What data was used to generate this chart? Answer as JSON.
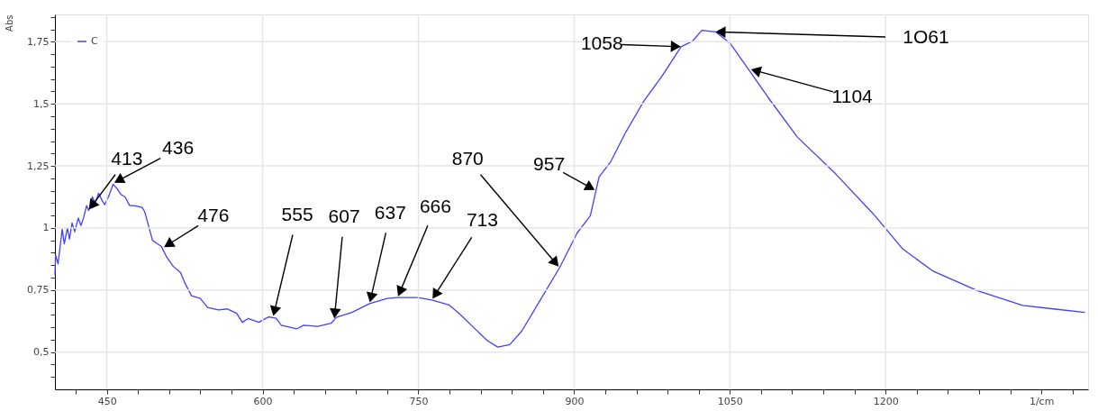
{
  "chart_data": {
    "type": "line",
    "ylabel": "Abs",
    "xlabel": "1/cm",
    "legend": "top left",
    "grid": true,
    "marker": "none",
    "line_style": "solid",
    "xlim": [
      400,
      1395
    ],
    "ylim": [
      0.35,
      1.86
    ],
    "xticks": [
      {
        "value": 420,
        "label": null
      },
      450,
      {
        "value": 480,
        "label": null
      },
      {
        "value": 510,
        "label": null
      },
      {
        "value": 540,
        "label": null
      },
      {
        "value": 570,
        "label": null
      },
      600,
      {
        "value": 630,
        "label": null
      },
      {
        "value": 660,
        "label": null
      },
      {
        "value": 690,
        "label": null
      },
      {
        "value": 720,
        "label": null
      },
      750,
      {
        "value": 780,
        "label": null
      },
      {
        "value": 810,
        "label": null
      },
      {
        "value": 840,
        "label": null
      },
      {
        "value": 870,
        "label": null
      },
      900,
      {
        "value": 930,
        "label": null
      },
      {
        "value": 960,
        "label": null
      },
      {
        "value": 990,
        "label": null
      },
      {
        "value": 1020,
        "label": null
      },
      1050,
      {
        "value": 1080,
        "label": null
      },
      {
        "value": 1110,
        "label": null
      },
      {
        "value": 1140,
        "label": null
      },
      {
        "value": 1170,
        "label": null
      },
      1200,
      {
        "value": 1230,
        "label": null
      },
      {
        "value": 1260,
        "label": null
      },
      {
        "value": 1290,
        "label": null
      },
      {
        "value": 1320,
        "label": null
      },
      {
        "value": 1350,
        "label": null
      },
      {
        "value": 1380,
        "label": null
      }
    ],
    "yticks": [
      {
        "value": 0.4,
        "label": null
      },
      {
        "value": 0.45,
        "label": null
      },
      {
        "value": 0.5,
        "label": "0,5"
      },
      {
        "value": 0.55,
        "label": null
      },
      {
        "value": 0.6,
        "label": null
      },
      {
        "value": 0.65,
        "label": null
      },
      {
        "value": 0.7,
        "label": null
      },
      {
        "value": 0.75,
        "label": "0,75"
      },
      {
        "value": 0.8,
        "label": null
      },
      {
        "value": 0.85,
        "label": null
      },
      {
        "value": 0.9,
        "label": null
      },
      {
        "value": 0.95,
        "label": null
      },
      1,
      {
        "value": 1.05,
        "label": null
      },
      {
        "value": 1.1,
        "label": null
      },
      {
        "value": 1.15,
        "label": null
      },
      {
        "value": 1.2,
        "label": null
      },
      {
        "value": 1.25,
        "label": "1,25"
      },
      {
        "value": 1.3,
        "label": null
      },
      {
        "value": 1.35,
        "label": null
      },
      {
        "value": 1.4,
        "label": null
      },
      {
        "value": 1.45,
        "label": null
      },
      {
        "value": 1.5,
        "label": "1,5"
      },
      {
        "value": 1.55,
        "label": null
      },
      {
        "value": 1.6,
        "label": null
      },
      {
        "value": 1.65,
        "label": null
      },
      {
        "value": 1.7,
        "label": null
      },
      {
        "value": 1.75,
        "label": "1,75"
      },
      {
        "value": 1.8,
        "label": null
      },
      {
        "value": 1.85,
        "label": null
      }
    ],
    "series": [
      {
        "name": "C",
        "color": "#4040ff",
        "x": [
          400,
          400.6,
          403,
          405,
          407,
          409,
          412,
          414,
          416.5,
          419,
          422.5,
          425,
          427.5,
          430.5,
          432.5,
          436,
          439,
          442,
          445.5,
          448,
          452,
          456,
          459.5,
          463.5,
          467.5,
          472,
          476,
          484,
          486.5,
          491,
          494,
          502.5,
          508,
          514,
          521,
          525.5,
          531.5,
          540,
          547,
          557.5,
          566,
          575,
          580.5,
          586,
          596.5,
          599.5,
          606,
          613,
          618,
          633,
          639.5,
          653,
          666,
          671,
          686,
          703,
          720,
          730,
          749.5,
          763,
          779.5,
          789.7,
          803,
          816.5,
          826.5,
          838,
          849.8,
          866,
          886,
          902.7,
          915.7,
          924,
          935,
          949,
          967,
          985,
          1003,
          1014,
          1023,
          1036,
          1050,
          1065,
          1086.6,
          1115,
          1151.6,
          1187.8,
          1216.6,
          1245.3,
          1288.7,
          1332,
          1361.5,
          1392
        ],
        "values": [
          0.81,
          0.89,
          0.855,
          0.925,
          0.995,
          0.936,
          1.0,
          0.955,
          1.02,
          0.985,
          1.04,
          1.01,
          1.04,
          1.09,
          1.07,
          1.125,
          1.1,
          1.14,
          1.11,
          1.094,
          1.13,
          1.176,
          1.16,
          1.135,
          1.125,
          1.09,
          1.09,
          1.083,
          1.065,
          0.995,
          0.95,
          0.925,
          0.88,
          0.845,
          0.82,
          0.775,
          0.727,
          0.716,
          0.68,
          0.67,
          0.674,
          0.656,
          0.62,
          0.635,
          0.62,
          0.628,
          0.642,
          0.636,
          0.608,
          0.594,
          0.608,
          0.604,
          0.616,
          0.64,
          0.66,
          0.695,
          0.716,
          0.72,
          0.72,
          0.71,
          0.69,
          0.654,
          0.6,
          0.546,
          0.52,
          0.53,
          0.586,
          0.7,
          0.84,
          0.978,
          1.05,
          1.205,
          1.265,
          1.38,
          1.51,
          1.614,
          1.73,
          1.752,
          1.796,
          1.79,
          1.745,
          1.656,
          1.527,
          1.366,
          1.219,
          1.058,
          0.915,
          0.827,
          0.747,
          0.688,
          0.674,
          0.66
        ]
      }
    ],
    "annotations": [
      {
        "text": "413",
        "x": 432,
        "y": 1.07
      },
      {
        "text": "436",
        "x": 456,
        "y": 1.18
      },
      {
        "text": "476",
        "x": 504,
        "y": 0.92
      },
      {
        "text": "555",
        "x": 610,
        "y": 0.64
      },
      {
        "text": "607",
        "x": 669,
        "y": 0.63
      },
      {
        "text": "637",
        "x": 703,
        "y": 0.695
      },
      {
        "text": "666",
        "x": 730,
        "y": 0.72
      },
      {
        "text": "713",
        "x": 763,
        "y": 0.71
      },
      {
        "text": "870",
        "x": 886,
        "y": 0.84
      },
      {
        "text": "957",
        "x": 921,
        "y": 1.15
      },
      {
        "text": "1058",
        "x": 1004,
        "y": 1.73
      },
      {
        "text": "1O61",
        "x": 1035,
        "y": 1.79
      },
      {
        "text": "1104",
        "x": 1069,
        "y": 1.64
      }
    ]
  }
}
